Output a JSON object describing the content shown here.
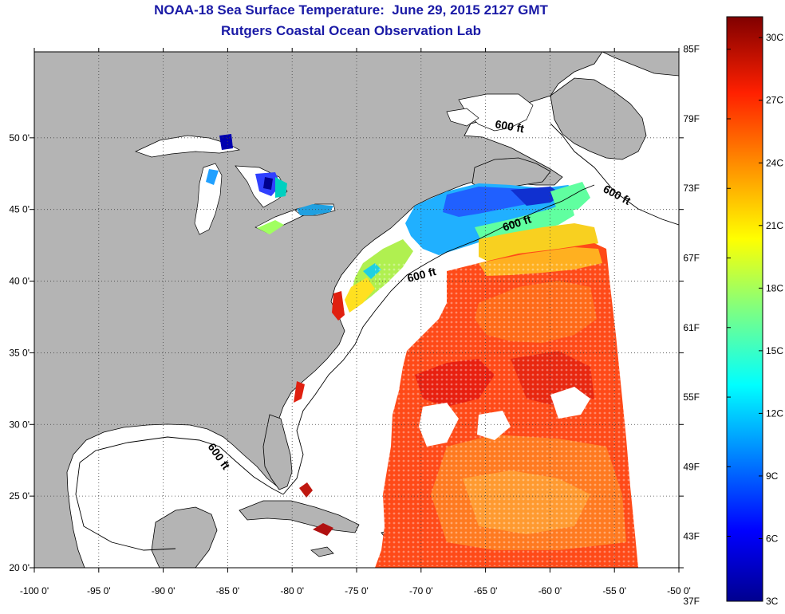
{
  "title_line1": "NOAA-18 Sea Surface Temperature:  June 29, 2015 2127 GMT",
  "title_line2": "Rutgers Coastal Ocean Observation Lab",
  "map": {
    "lon_ticks": [
      "-100 0'",
      "-95 0'",
      "-90 0'",
      "-85 0'",
      "-80 0'",
      "-75 0'",
      "-70 0'",
      "-65 0'",
      "-60 0'",
      "-55 0'",
      "-50 0'"
    ],
    "lat_ticks": [
      "20 0'",
      "25 0'",
      "30 0'",
      "35 0'",
      "40 0'",
      "45 0'",
      "50 0'"
    ],
    "contour_labels": [
      "600 ft",
      "600 ft",
      "600 ft",
      "600 ft",
      "600 ft"
    ],
    "colors": {
      "land": "#b4b4b4",
      "water_no_data": "#ffffff",
      "grid": "#555555"
    }
  },
  "colorbar": {
    "fahrenheit": [
      "85F",
      "79F",
      "73F",
      "67F",
      "61F",
      "55F",
      "49F",
      "43F",
      "37F"
    ],
    "celsius": [
      "30C",
      "27C",
      "24C",
      "21C",
      "18C",
      "15C",
      "12C",
      "9C",
      "6C",
      "3C"
    ],
    "range_c": [
      3,
      31
    ],
    "colors": [
      "#00008f",
      "#0000ff",
      "#0080ff",
      "#00ffff",
      "#80ff80",
      "#ffff00",
      "#ff8000",
      "#ff0000",
      "#800000"
    ]
  }
}
